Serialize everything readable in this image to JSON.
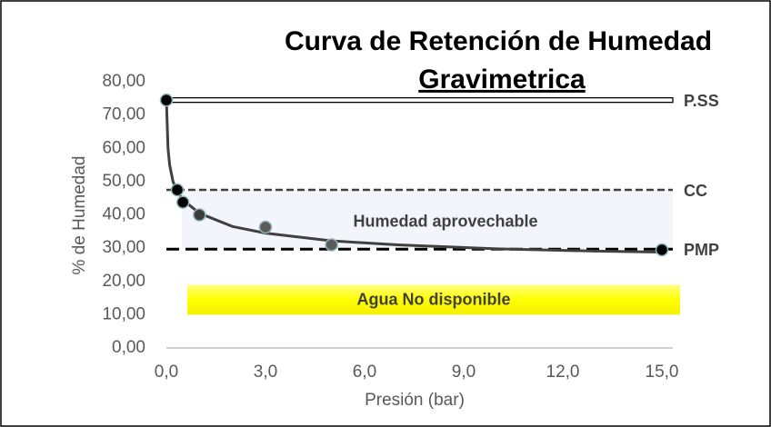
{
  "chart_data": {
    "type": "scatter",
    "title": [
      "Curva de Retención de Humedad",
      "Gravimetrica"
    ],
    "xlabel": "Presión (bar)",
    "ylabel": "% de Humedad",
    "xlim": [
      0,
      15
    ],
    "ylim": [
      0,
      80
    ],
    "xticks": [
      {
        "value": 0,
        "label": "0,0"
      },
      {
        "value": 3,
        "label": "3,0"
      },
      {
        "value": 6,
        "label": "6,0"
      },
      {
        "value": 9,
        "label": "9,0"
      },
      {
        "value": 12,
        "label": "12,0"
      },
      {
        "value": 15,
        "label": "15,0"
      }
    ],
    "yticks": [
      {
        "value": 0,
        "label": "0,00"
      },
      {
        "value": 10,
        "label": "10,00"
      },
      {
        "value": 20,
        "label": "20,00"
      },
      {
        "value": 30,
        "label": "30,00"
      },
      {
        "value": 40,
        "label": "40,00"
      },
      {
        "value": 50,
        "label": "50,00"
      },
      {
        "value": 60,
        "label": "60,00"
      },
      {
        "value": 70,
        "label": "70,00"
      },
      {
        "value": 80,
        "label": "80,00"
      }
    ],
    "series": [
      {
        "x": [
          0,
          0.33,
          0.5,
          1,
          3,
          5,
          15
        ],
        "values": [
          74.5,
          47.5,
          43.8,
          40,
          36.3,
          31,
          29.5
        ],
        "colors": [
          "#000000",
          "#000000",
          "#000000",
          "#3c3c3c",
          "#5a5a5a",
          "#5a5a5a",
          "#000000"
        ]
      }
    ],
    "trend": {
      "color": "#404040",
      "x": [
        0,
        0.05,
        0.1,
        0.2,
        0.33,
        0.5,
        1,
        2,
        3,
        5,
        7,
        10,
        13,
        15
      ],
      "values": [
        74.5,
        60,
        55,
        50,
        47,
        44.5,
        40.5,
        36.5,
        34.5,
        32.2,
        31,
        29.8,
        29.1,
        28.8
      ]
    },
    "reference_lines": [
      {
        "label": "P.SS",
        "value": 74.5,
        "style": "double",
        "color": "#000000"
      },
      {
        "label": "CC",
        "value": 47.5,
        "style": "dashed",
        "color": "#404040"
      },
      {
        "label": "PMP",
        "value": 29.7,
        "style": "dashed",
        "color": "#000000"
      }
    ],
    "region_label": "Humedad aprovechable",
    "band": {
      "label": "Agua No disponible",
      "y": [
        10,
        19
      ]
    }
  }
}
